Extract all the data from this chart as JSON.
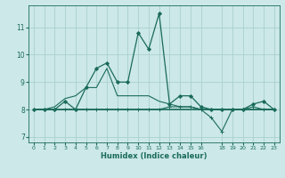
{
  "xlabel": "Humidex (Indice chaleur)",
  "ylabel": "",
  "bg_color": "#cce8e8",
  "grid_color": "#aacfcf",
  "line_color": "#1a6b5a",
  "xlim": [
    -0.5,
    23.5
  ],
  "ylim": [
    6.8,
    11.8
  ],
  "yticks": [
    7,
    8,
    9,
    10,
    11
  ],
  "xticks": [
    0,
    1,
    2,
    3,
    4,
    5,
    6,
    7,
    8,
    9,
    10,
    11,
    12,
    13,
    14,
    15,
    16,
    18,
    19,
    20,
    21,
    22,
    23
  ],
  "xtick_labels": [
    "0",
    "1",
    "2",
    "3",
    "4",
    "5",
    "6",
    "7",
    "8",
    "9",
    "10",
    "11",
    "12",
    "13",
    "14",
    "15",
    "16",
    "18",
    "19",
    "20",
    "21",
    "22",
    "23"
  ],
  "series": [
    {
      "x": [
        0,
        1,
        2,
        3,
        4,
        5,
        6,
        7,
        8,
        9,
        10,
        11,
        12,
        13,
        14,
        15,
        16,
        17,
        18,
        19,
        20,
        21,
        22,
        23
      ],
      "y": [
        8.0,
        8.0,
        8.0,
        8.3,
        8.0,
        8.8,
        9.5,
        9.7,
        9.0,
        9.0,
        10.8,
        10.2,
        11.5,
        8.2,
        8.5,
        8.5,
        8.1,
        8.0,
        8.0,
        8.0,
        8.0,
        8.2,
        8.3,
        8.0
      ],
      "marker": "D",
      "markersize": 2.0,
      "linewidth": 0.9
    },
    {
      "x": [
        0,
        1,
        2,
        3,
        4,
        5,
        6,
        7,
        8,
        9,
        10,
        11,
        12,
        13,
        14,
        15,
        16,
        17,
        18,
        19,
        20,
        21,
        22,
        23
      ],
      "y": [
        8.0,
        8.0,
        8.1,
        8.4,
        8.5,
        8.8,
        8.8,
        9.5,
        8.5,
        8.5,
        8.5,
        8.5,
        8.3,
        8.2,
        8.1,
        8.1,
        8.0,
        8.0,
        8.0,
        8.0,
        8.0,
        8.0,
        8.0,
        8.0
      ],
      "marker": null,
      "markersize": 0,
      "linewidth": 0.8
    },
    {
      "x": [
        0,
        1,
        2,
        3,
        4,
        5,
        6,
        7,
        8,
        9,
        10,
        11,
        12,
        13,
        14,
        15,
        16,
        17,
        18,
        19,
        20,
        21,
        22,
        23
      ],
      "y": [
        8.0,
        8.0,
        8.0,
        8.0,
        8.0,
        8.0,
        8.0,
        8.0,
        8.0,
        8.0,
        8.0,
        8.0,
        8.0,
        8.0,
        8.0,
        8.0,
        8.0,
        8.0,
        8.0,
        8.0,
        8.0,
        8.0,
        8.0,
        8.0
      ],
      "marker": null,
      "markersize": 0,
      "linewidth": 1.2
    },
    {
      "x": [
        0,
        1,
        2,
        3,
        4,
        5,
        6,
        7,
        8,
        9,
        10,
        11,
        12,
        13,
        14,
        15,
        16,
        17,
        18,
        19,
        20,
        21,
        22,
        23
      ],
      "y": [
        8.0,
        8.0,
        8.0,
        8.0,
        8.0,
        8.0,
        8.0,
        8.0,
        8.0,
        8.0,
        8.0,
        8.0,
        8.0,
        8.1,
        8.1,
        8.1,
        8.0,
        7.7,
        7.2,
        8.0,
        8.0,
        8.1,
        8.0,
        8.0
      ],
      "marker": "+",
      "markersize": 3.0,
      "linewidth": 0.8
    }
  ]
}
